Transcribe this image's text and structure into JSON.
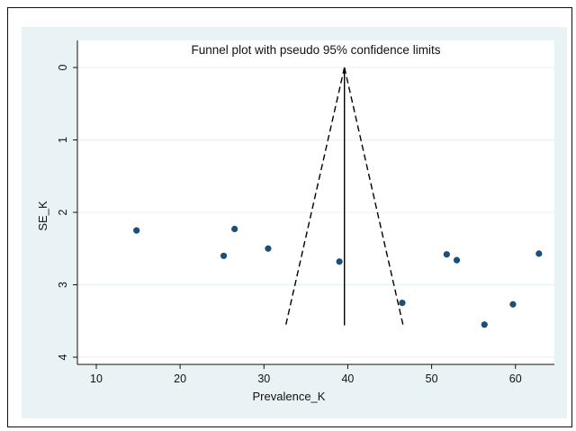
{
  "chart_data": {
    "type": "scatter",
    "title": "Funnel plot with pseudo 95% confidence limits",
    "xlabel": "Prevalence_K",
    "ylabel": "SE_K",
    "xlim": [
      8.5,
      64
    ],
    "ylim": [
      0,
      4.1
    ],
    "y_reversed": true,
    "x_ticks": [
      10,
      20,
      30,
      40,
      50,
      60
    ],
    "y_ticks": [
      0,
      1,
      2,
      3,
      4
    ],
    "grid": true,
    "points": [
      {
        "x": 14.8,
        "y": 2.25
      },
      {
        "x": 25.2,
        "y": 2.6
      },
      {
        "x": 26.5,
        "y": 2.23
      },
      {
        "x": 30.5,
        "y": 2.5
      },
      {
        "x": 39.0,
        "y": 2.68
      },
      {
        "x": 46.5,
        "y": 3.25
      },
      {
        "x": 51.8,
        "y": 2.58
      },
      {
        "x": 53.0,
        "y": 2.66
      },
      {
        "x": 56.3,
        "y": 3.55
      },
      {
        "x": 59.7,
        "y": 3.27
      },
      {
        "x": 62.8,
        "y": 2.57
      }
    ],
    "pooled_estimate": 39.6,
    "ci_limits": {
      "se_max": 3.56,
      "lower_at_max": 32.6,
      "upper_at_max": 46.6
    },
    "colors": {
      "background_outer": "#e9f3f5",
      "plot_area": "#ffffff",
      "grid": "#e9f3f5",
      "marker": "#1c4f78",
      "line": "#000000"
    }
  }
}
